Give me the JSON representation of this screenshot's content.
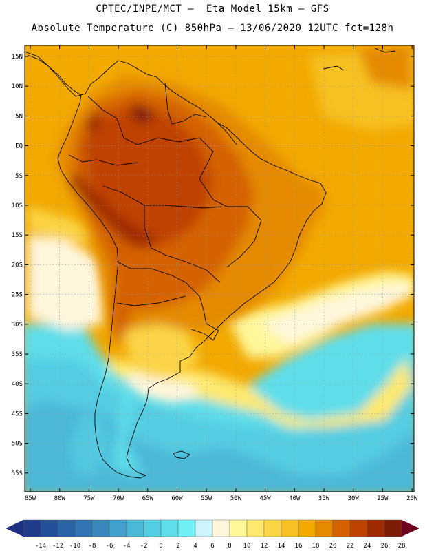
{
  "header": {
    "line1": "CPTEC/INPE/MCT –  Eta Model 15km – GFS",
    "line2": "Absolute Temperature (C) 850hPa – 13/06/2020 12UTC fct=128h"
  },
  "lat_labels": [
    "15N",
    "10N",
    "5N",
    "EQ",
    "5S",
    "10S",
    "15S",
    "20S",
    "25S",
    "30S",
    "35S",
    "40S",
    "45S",
    "50S",
    "55S"
  ],
  "lon_labels": [
    "85W",
    "80W",
    "75W",
    "70W",
    "65W",
    "60W",
    "55W",
    "50W",
    "45W",
    "40W",
    "35W",
    "30W",
    "25W",
    "20W"
  ],
  "colorbar": {
    "labels": [
      "-14",
      "-12",
      "-10",
      "-8",
      "-6",
      "-4",
      "-2",
      "0",
      "2",
      "4",
      "6",
      "8",
      "10",
      "12",
      "14",
      "16",
      "18",
      "20",
      "22",
      "24",
      "26",
      "28"
    ],
    "colors": [
      "#1f3d8a",
      "#234f98",
      "#2b63a8",
      "#3274b4",
      "#3a88be",
      "#42a0cc",
      "#4cb8d8",
      "#54cde2",
      "#5fdeea",
      "#6ef0f4",
      "#cdf3fb",
      "#fff6dc",
      "#fff79a",
      "#fee96e",
      "#fbd546",
      "#f7c124",
      "#f2a900",
      "#e58a00",
      "#d46200",
      "#c04200",
      "#9e2a00",
      "#7d1d08"
    ],
    "under_color": "#1e3080",
    "over_color": "#70001f"
  }
}
